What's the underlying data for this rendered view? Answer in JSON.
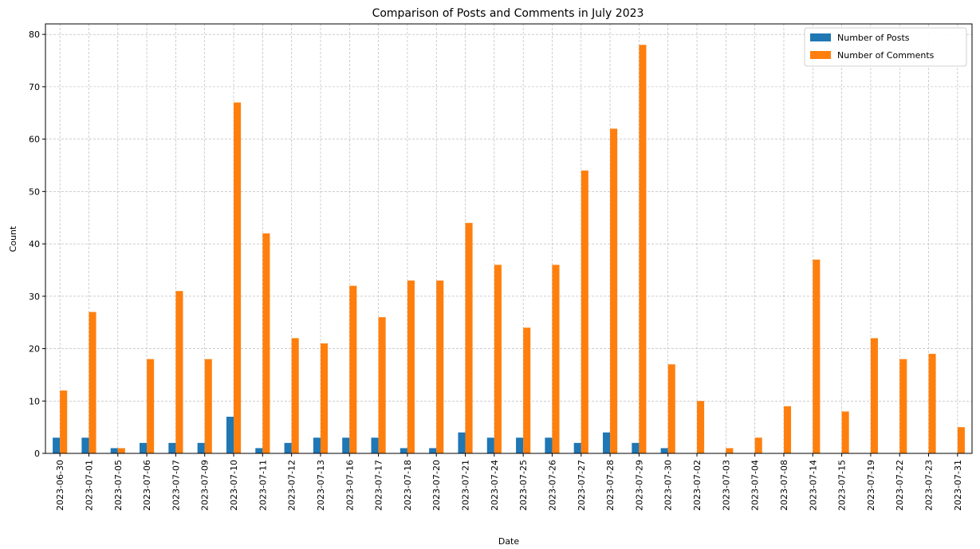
{
  "chart_data": {
    "type": "bar",
    "title": "Comparison of Posts and Comments in July 2023",
    "xlabel": "Date",
    "ylabel": "Count",
    "ylim": [
      0,
      82
    ],
    "yticks": [
      0,
      10,
      20,
      30,
      40,
      50,
      60,
      70,
      80
    ],
    "grid": true,
    "legend_position": "top-right",
    "categories": [
      "2023-06-30",
      "2023-07-01",
      "2023-07-05",
      "2023-07-06",
      "2023-07-07",
      "2023-07-09",
      "2023-07-10",
      "2023-07-11",
      "2023-07-12",
      "2023-07-13",
      "2023-07-16",
      "2023-07-17",
      "2023-07-18",
      "2023-07-20",
      "2023-07-21",
      "2023-07-24",
      "2023-07-25",
      "2023-07-26",
      "2023-07-27",
      "2023-07-28",
      "2023-07-29",
      "2023-07-30",
      "2023-07-02",
      "2023-07-03",
      "2023-07-04",
      "2023-07-08",
      "2023-07-14",
      "2023-07-15",
      "2023-07-19",
      "2023-07-22",
      "2023-07-23",
      "2023-07-31"
    ],
    "series": [
      {
        "name": "Number of Posts",
        "color": "#1f77b4",
        "values": [
          3,
          3,
          1,
          2,
          2,
          2,
          7,
          1,
          2,
          3,
          3,
          3,
          1,
          1,
          4,
          3,
          3,
          3,
          2,
          4,
          2,
          1,
          0,
          0,
          0,
          0,
          0,
          0,
          0,
          0,
          0,
          0
        ]
      },
      {
        "name": "Number of Comments",
        "color": "#ff7f0e",
        "values": [
          12,
          27,
          1,
          18,
          31,
          18,
          67,
          42,
          22,
          21,
          32,
          26,
          33,
          33,
          44,
          36,
          24,
          36,
          54,
          62,
          78,
          17,
          10,
          1,
          3,
          9,
          37,
          8,
          22,
          18,
          19,
          5
        ]
      }
    ]
  }
}
